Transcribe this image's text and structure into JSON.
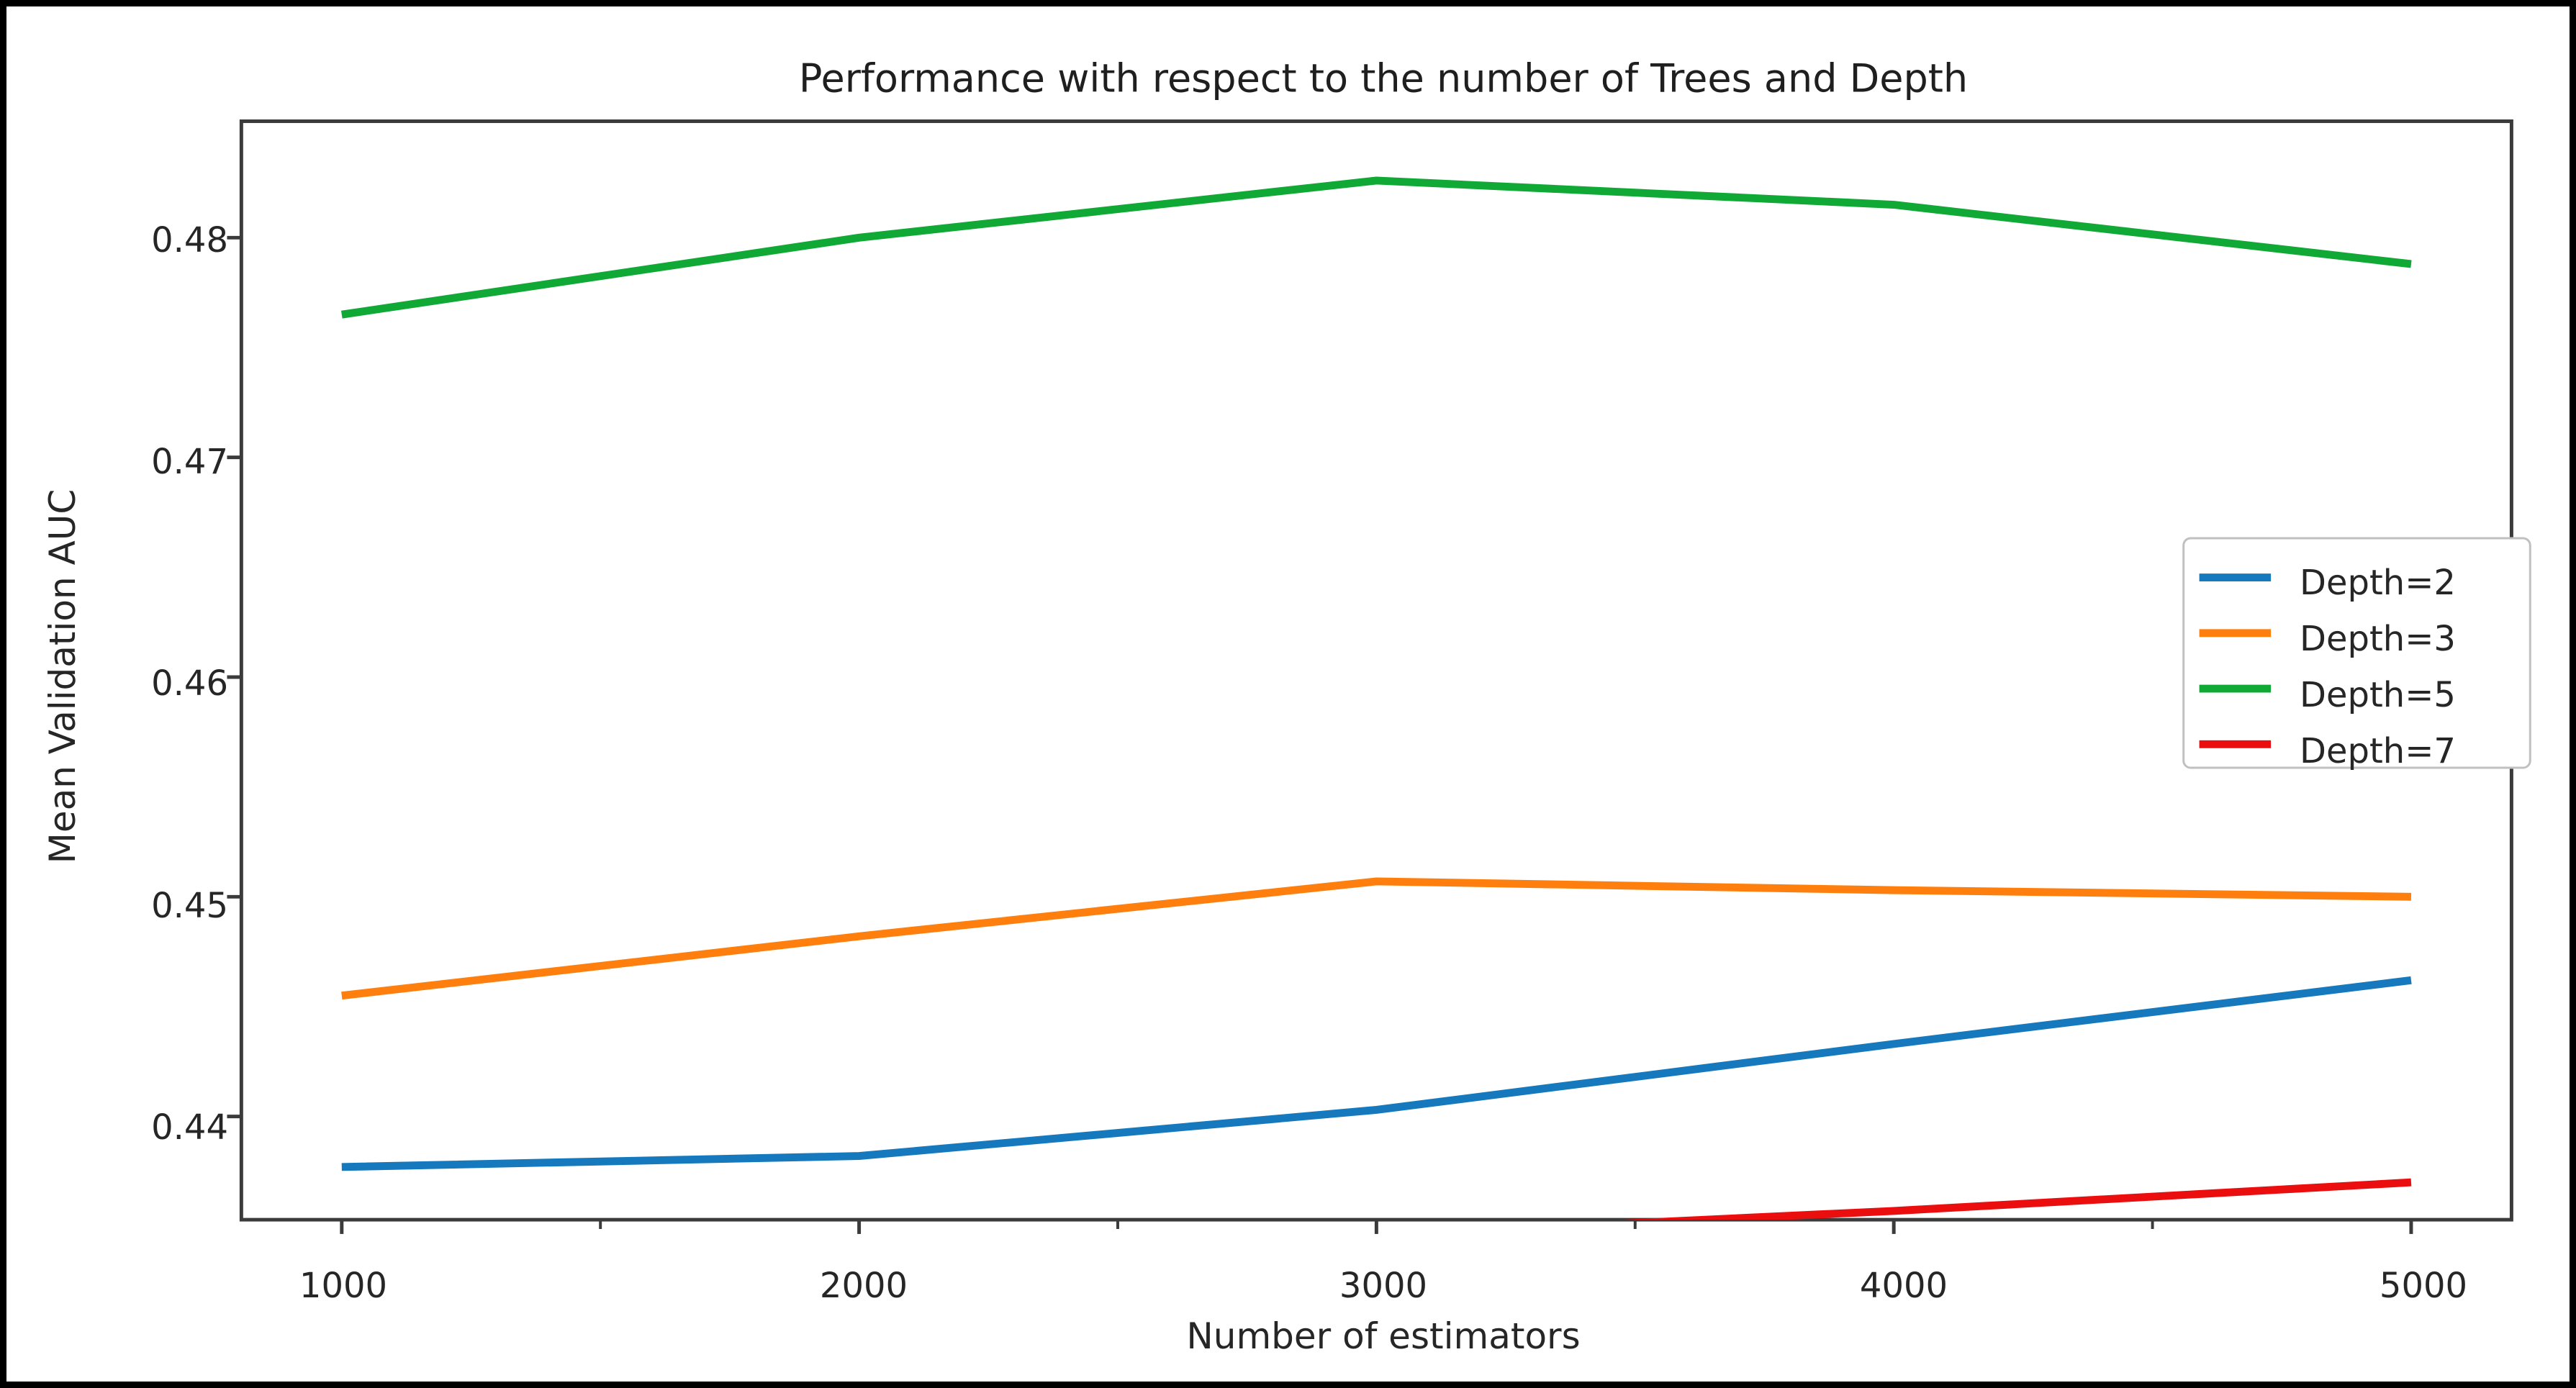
{
  "window": {
    "border_color": "#000000",
    "background": "#ffffff"
  },
  "chart_data": {
    "type": "line",
    "title": "Performance with respect to the number of Trees and Depth",
    "xlabel": "Number of estimators",
    "ylabel": "Mean Validation AUC",
    "x": [
      1000,
      2000,
      3000,
      4000,
      5000
    ],
    "x_tick_labels": [
      "1000",
      "2000",
      "3000",
      "4000",
      "5000"
    ],
    "x_minor_ticks": [
      1500,
      2500,
      3500,
      4500
    ],
    "y_ticks": [
      0.44,
      0.45,
      0.46,
      0.47,
      0.48
    ],
    "y_tick_labels": [
      "0.44",
      "0.45",
      "0.46",
      "0.47",
      "0.48"
    ],
    "xlim": [
      806,
      5194
    ],
    "ylim": [
      0.4353,
      0.4853
    ],
    "grid": false,
    "legend": {
      "position": "center-right",
      "entries": [
        "Depth=2",
        "Depth=3",
        "Depth=5",
        "Depth=7"
      ]
    },
    "series": [
      {
        "name": "Depth=2",
        "color": "#1679bd",
        "values": [
          0.4377,
          0.4382,
          0.4403,
          0.4433,
          0.4462
        ]
      },
      {
        "name": "Depth=3",
        "color": "#ff7f0e",
        "values": [
          0.4455,
          0.4482,
          0.4507,
          0.4503,
          0.45
        ]
      },
      {
        "name": "Depth=5",
        "color": "#10a935",
        "values": [
          0.4765,
          0.48,
          0.4826,
          0.4815,
          0.4788
        ]
      },
      {
        "name": "Depth=7",
        "color": "#ea0e0e",
        "values": [
          null,
          null,
          0.4346,
          0.4357,
          0.437
        ],
        "note": "visible only where it rises above the y-axis lower limit, near x=3600"
      }
    ],
    "spine_color": "#3b3b3b",
    "legend_border_color": "#c0c0c0"
  }
}
